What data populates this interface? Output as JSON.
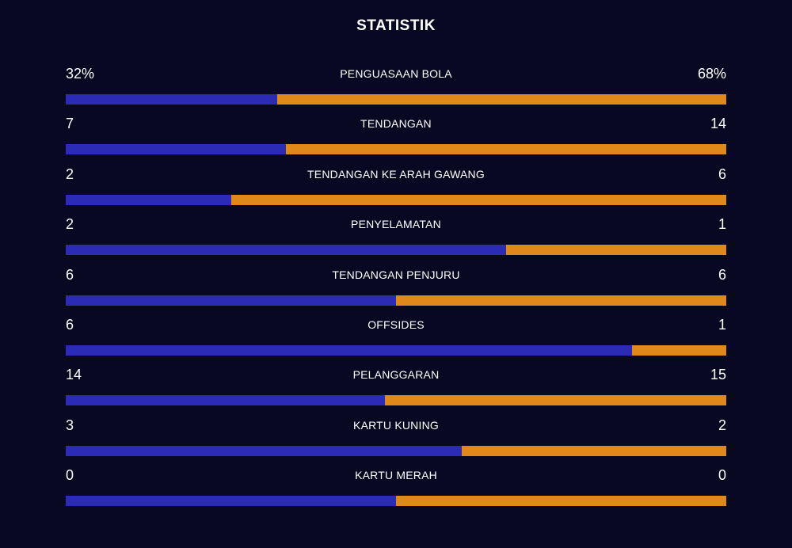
{
  "title": "STATISTIK",
  "colors": {
    "background": "#080822",
    "home": "#2b2bb6",
    "away": "#e0891a"
  },
  "stats": [
    {
      "label": "PENGUASAAN BOLA",
      "home": "32%",
      "away": "68%",
      "home_share": 0.32
    },
    {
      "label": "TENDANGAN",
      "home": "7",
      "away": "14",
      "home_share": 0.333
    },
    {
      "label": "TENDANGAN KE ARAH GAWANG",
      "home": "2",
      "away": "6",
      "home_share": 0.25
    },
    {
      "label": "PENYELAMATAN",
      "home": "2",
      "away": "1",
      "home_share": 0.667
    },
    {
      "label": "TENDANGAN PENJURU",
      "home": "6",
      "away": "6",
      "home_share": 0.5
    },
    {
      "label": "OFFSIDES",
      "home": "6",
      "away": "1",
      "home_share": 0.857
    },
    {
      "label": "PELANGGARAN",
      "home": "14",
      "away": "15",
      "home_share": 0.483
    },
    {
      "label": "KARTU KUNING",
      "home": "3",
      "away": "2",
      "home_share": 0.6
    },
    {
      "label": "KARTU MERAH",
      "home": "0",
      "away": "0",
      "home_share": 0.5
    }
  ]
}
